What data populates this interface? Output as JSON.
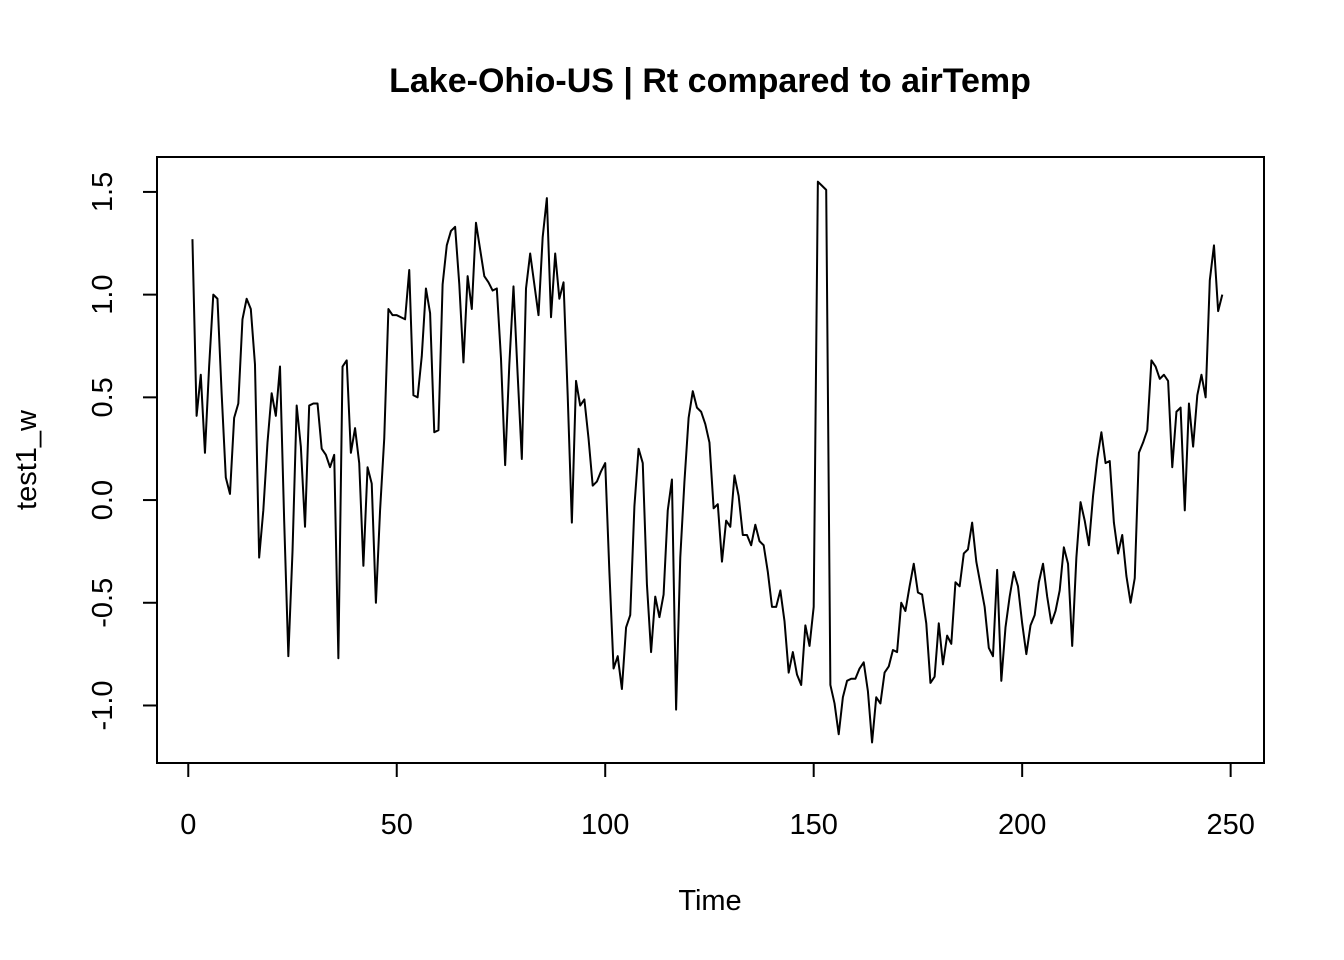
{
  "chart_data": {
    "type": "line",
    "title": "Lake-Ohio-US | Rt compared to airTemp",
    "xlabel": "Time",
    "ylabel": "test1_w",
    "xlim": [
      -7.5,
      258
    ],
    "ylim": [
      -1.28,
      1.67
    ],
    "x_ticks": [
      0,
      50,
      100,
      150,
      200,
      250
    ],
    "x_tick_labels": [
      "0",
      "50",
      "100",
      "150",
      "200",
      "250"
    ],
    "y_ticks": [
      -1.0,
      -0.5,
      0.0,
      0.5,
      1.0,
      1.5
    ],
    "y_tick_labels": [
      "-1.0",
      "-0.5",
      "0.0",
      "0.5",
      "1.0",
      "1.5"
    ],
    "grid": false,
    "line_color": "#000000",
    "series": [
      {
        "values": [
          1.27,
          0.41,
          0.61,
          0.23,
          0.65,
          1.0,
          0.98,
          0.52,
          0.11,
          0.03,
          0.4,
          0.47,
          0.88,
          0.98,
          0.93,
          0.66,
          -0.28,
          -0.05,
          0.28,
          0.52,
          0.41,
          0.65,
          -0.1,
          -0.76,
          -0.25,
          0.46,
          0.26,
          -0.13,
          0.46,
          0.47,
          0.47,
          0.25,
          0.22,
          0.16,
          0.22,
          -0.77,
          0.65,
          0.68,
          0.23,
          0.35,
          0.18,
          -0.32,
          0.16,
          0.08,
          -0.5,
          -0.05,
          0.3,
          0.93,
          0.9,
          0.9,
          0.89,
          0.88,
          1.12,
          0.51,
          0.5,
          0.7,
          1.03,
          0.91,
          0.33,
          0.34,
          1.05,
          1.24,
          1.31,
          1.33,
          1.05,
          0.67,
          1.09,
          0.93,
          1.35,
          1.22,
          1.09,
          1.06,
          1.02,
          1.03,
          0.69,
          0.17,
          0.66,
          1.04,
          0.61,
          0.2,
          1.03,
          1.2,
          1.05,
          0.9,
          1.28,
          1.47,
          0.89,
          1.2,
          0.98,
          1.06,
          0.51,
          -0.11,
          0.58,
          0.46,
          0.49,
          0.3,
          0.07,
          0.09,
          0.14,
          0.18,
          -0.35,
          -0.82,
          -0.76,
          -0.92,
          -0.62,
          -0.56,
          -0.03,
          0.25,
          0.18,
          -0.41,
          -0.74,
          -0.47,
          -0.57,
          -0.46,
          -0.05,
          0.1,
          -1.02,
          -0.28,
          0.09,
          0.4,
          0.53,
          0.45,
          0.43,
          0.37,
          0.28,
          -0.04,
          -0.02,
          -0.3,
          -0.1,
          -0.13,
          0.12,
          0.02,
          -0.17,
          -0.17,
          -0.22,
          -0.12,
          -0.2,
          -0.22,
          -0.35,
          -0.52,
          -0.52,
          -0.44,
          -0.59,
          -0.84,
          -0.74,
          -0.85,
          -0.9,
          -0.61,
          -0.71,
          -0.52,
          1.55,
          1.53,
          1.51,
          -0.9,
          -0.99,
          -1.14,
          -0.96,
          -0.88,
          -0.87,
          -0.87,
          -0.82,
          -0.79,
          -0.93,
          -1.18,
          -0.96,
          -0.99,
          -0.84,
          -0.81,
          -0.73,
          -0.74,
          -0.5,
          -0.54,
          -0.42,
          -0.31,
          -0.45,
          -0.46,
          -0.6,
          -0.89,
          -0.86,
          -0.6,
          -0.8,
          -0.66,
          -0.7,
          -0.4,
          -0.42,
          -0.26,
          -0.24,
          -0.11,
          -0.3,
          -0.41,
          -0.52,
          -0.72,
          -0.76,
          -0.34,
          -0.88,
          -0.62,
          -0.47,
          -0.35,
          -0.42,
          -0.6,
          -0.75,
          -0.61,
          -0.56,
          -0.4,
          -0.31,
          -0.47,
          -0.6,
          -0.54,
          -0.44,
          -0.23,
          -0.31,
          -0.71,
          -0.28,
          -0.01,
          -0.1,
          -0.22,
          0.02,
          0.2,
          0.33,
          0.18,
          0.19,
          -0.11,
          -0.26,
          -0.17,
          -0.37,
          -0.5,
          -0.38,
          0.23,
          0.28,
          0.34,
          0.68,
          0.65,
          0.59,
          0.61,
          0.58,
          0.16,
          0.43,
          0.45,
          -0.05,
          0.47,
          0.26,
          0.51,
          0.61,
          0.5,
          1.07,
          1.24,
          0.92,
          1.0
        ]
      }
    ]
  }
}
